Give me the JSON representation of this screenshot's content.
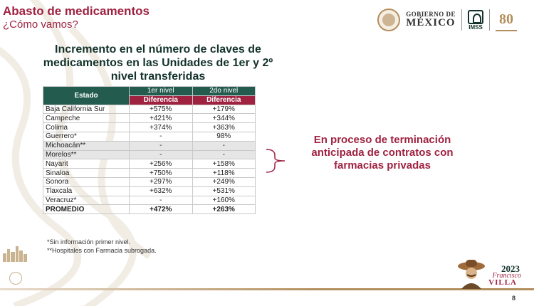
{
  "header": {
    "title": "Abasto de medicamentos",
    "subtitle": "¿Cómo vamos?"
  },
  "logos": {
    "gobierno_line1": "GOBIERNO DE",
    "gobierno_line2": "MÉXICO",
    "imss": "IMSS",
    "anniversary": "80"
  },
  "table": {
    "title": "Incremento en el número de claves de medicamentos en las Unidades de 1er y 2º nivel transferidas",
    "col_estado": "Estado",
    "col_nivel1": "1er nivel",
    "col_nivel2": "2do nivel",
    "col_dif": "Diferencia",
    "rows": [
      {
        "estado": "Baja California Sur",
        "n1": "+575%",
        "n2": "+179%"
      },
      {
        "estado": "Campeche",
        "n1": "+421%",
        "n2": "+344%"
      },
      {
        "estado": "Colima",
        "n1": "+374%",
        "n2": "+363%"
      },
      {
        "estado": "Guerrero*",
        "n1": "-",
        "n2": "98%"
      },
      {
        "estado": "Michoacán**",
        "n1": "-",
        "n2": "-"
      },
      {
        "estado": "Morelos**",
        "n1": "-",
        "n2": "-"
      },
      {
        "estado": "Nayarit",
        "n1": "+256%",
        "n2": "+158%"
      },
      {
        "estado": "Sinaloa",
        "n1": "+750%",
        "n2": "+118%"
      },
      {
        "estado": "Sonora",
        "n1": "+297%",
        "n2": "+249%"
      },
      {
        "estado": "Tlaxcala",
        "n1": "+632%",
        "n2": "+531%"
      },
      {
        "estado": "Veracruz*",
        "n1": "-",
        "n2": "+160%"
      }
    ],
    "promedio": {
      "estado": "PROMEDIO",
      "n1": "+472%",
      "n2": "+263%"
    }
  },
  "notes": {
    "note1": "*Sin información primer nivel.",
    "note2": "**Hospitales con Farmacia subrogada."
  },
  "process_text": "En proceso de terminación anticipada de contratos con farmacias privadas",
  "footer": {
    "year": "2023",
    "name1": "Francisco",
    "name2": "VILLA",
    "page": "8"
  },
  "colors": {
    "guinda": "#9f2241",
    "green": "#235b4e",
    "gold": "#b38e5d"
  }
}
